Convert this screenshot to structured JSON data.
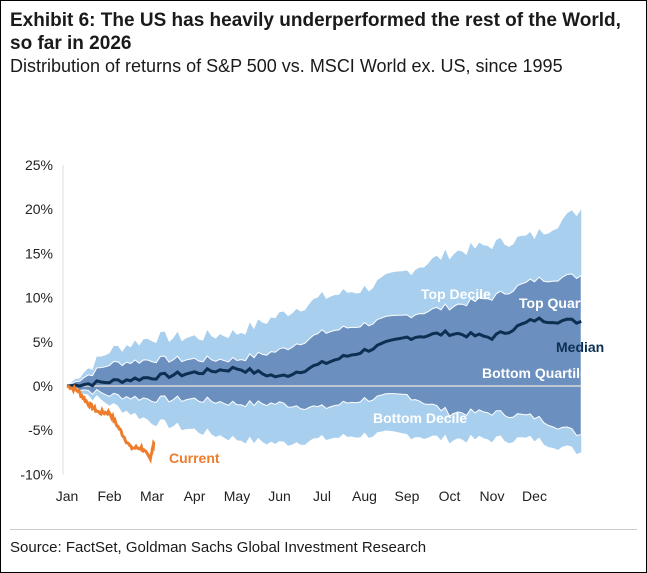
{
  "title": "Exhibit 6: The US has heavily underperformed the rest of the World, so far in 2026",
  "subtitle": "Distribution of returns of S&P 500 vs. MSCI World ex. US, since 1995",
  "source": "Source: FactSet, Goldman Sachs Global Investment Research",
  "colors": {
    "decile": "#a9cfee",
    "quartile": "#6b8fbf",
    "median": "#0d2f52",
    "current": "#ee7d2b",
    "zero": "#d9d9d9"
  },
  "chart_data": {
    "type": "area",
    "xlabel": "",
    "ylabel": "",
    "ylim": [
      -10,
      25
    ],
    "y_ticks": [
      "25%",
      "20%",
      "15%",
      "10%",
      "5%",
      "0%",
      "-5%",
      "-10%"
    ],
    "y_tick_values": [
      25,
      20,
      15,
      10,
      5,
      0,
      -5,
      -10
    ],
    "categories": [
      "Jan",
      "Feb",
      "Mar",
      "Apr",
      "May",
      "Jun",
      "Jul",
      "Aug",
      "Sep",
      "Oct",
      "Nov",
      "Dec"
    ],
    "x": [
      0,
      1,
      2,
      3,
      4,
      5,
      6,
      7,
      8,
      9,
      10,
      11,
      12.1
    ],
    "series": [
      {
        "name": "Top Decile",
        "values": [
          0,
          4,
          5.5,
          5.5,
          6,
          8,
          10,
          11,
          13,
          15,
          16,
          17,
          20
        ]
      },
      {
        "name": "Top Quartile",
        "values": [
          0,
          2.5,
          3,
          3,
          3,
          4,
          6,
          7,
          8,
          9,
          10,
          12,
          12.5
        ]
      },
      {
        "name": "Median",
        "values": [
          0,
          0.5,
          1,
          1.5,
          2,
          1,
          2.5,
          4,
          5.5,
          6,
          5.5,
          7.5,
          7.3
        ]
      },
      {
        "name": "Bottom Quartile",
        "values": [
          0,
          -1,
          -1.5,
          -1.5,
          -2,
          -2,
          -2.5,
          -1.5,
          -1,
          -3,
          -3,
          -3.5,
          -5.5
        ]
      },
      {
        "name": "Bottom Decile",
        "values": [
          0,
          -2,
          -4,
          -5,
          -6,
          -6.5,
          -6,
          -5.5,
          -5.5,
          -6,
          -6,
          -6,
          -7.5
        ]
      }
    ],
    "current": {
      "name": "Current",
      "x": [
        0,
        0.25,
        0.5,
        0.75,
        1,
        1.25,
        1.5,
        1.75,
        1.95,
        2.05
      ],
      "values": [
        0,
        -0.5,
        -2,
        -3,
        -3,
        -5,
        -7,
        -7,
        -8.2,
        -6.5
      ]
    }
  }
}
